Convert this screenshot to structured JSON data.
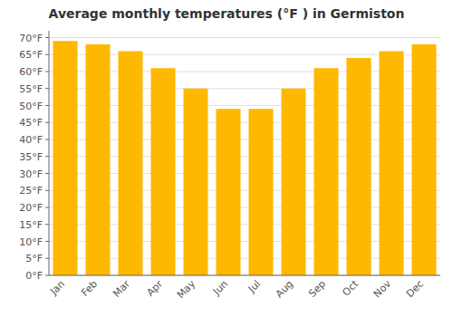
{
  "chart_data": {
    "type": "bar",
    "title": "Average monthly temperatures (°F ) in Germiston",
    "categories": [
      "Jan",
      "Feb",
      "Mar",
      "Apr",
      "May",
      "Jun",
      "Jul",
      "Aug",
      "Sep",
      "Oct",
      "Nov",
      "Dec"
    ],
    "values": [
      69,
      68,
      66,
      61,
      55,
      49,
      49,
      55,
      61,
      64,
      66,
      68
    ],
    "color": "#FFB800",
    "ylim": [
      0,
      72
    ],
    "yticks": [
      {
        "value": 0,
        "label": "0°F"
      },
      {
        "value": 5,
        "label": "5°F"
      },
      {
        "value": 10,
        "label": "10°F"
      },
      {
        "value": 15,
        "label": "15°F"
      },
      {
        "value": 20,
        "label": "20°F"
      },
      {
        "value": 25,
        "label": "25°F"
      },
      {
        "value": 30,
        "label": "30°F"
      },
      {
        "value": 35,
        "label": "35°F"
      },
      {
        "value": 40,
        "label": "40°F"
      },
      {
        "value": 45,
        "label": "45°F"
      },
      {
        "value": 50,
        "label": "50°F"
      },
      {
        "value": 55,
        "label": "55°F"
      },
      {
        "value": 60,
        "label": "60°F"
      },
      {
        "value": 65,
        "label": "65°F"
      },
      {
        "value": 70,
        "label": "70°F"
      }
    ],
    "grid": true
  }
}
